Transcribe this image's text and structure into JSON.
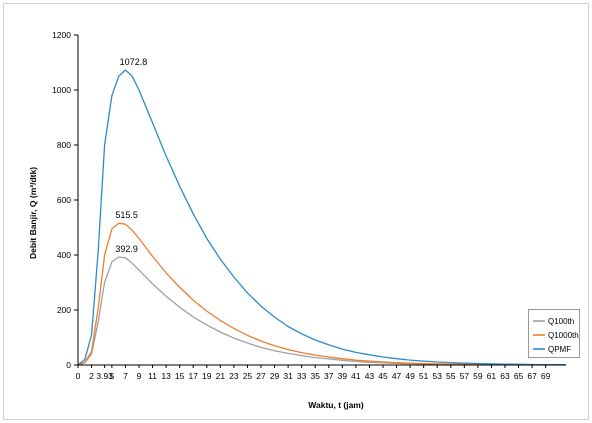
{
  "chart_data": {
    "type": "line",
    "xlabel": "Waktu, t (jam)",
    "ylabel": "Debit Banjir, Q (m³/dtk)",
    "ylim": [
      0,
      1200
    ],
    "y_ticks": [
      0,
      200,
      400,
      600,
      800,
      1000,
      1200
    ],
    "xlim": [
      0,
      72
    ],
    "x_tick_values": [
      0,
      2,
      3.93,
      5,
      7,
      9,
      11,
      13,
      15,
      17,
      19,
      21,
      23,
      25,
      27,
      29,
      31,
      33,
      35,
      37,
      39,
      41,
      43,
      45,
      47,
      49,
      51,
      53,
      55,
      57,
      59,
      61,
      63,
      65,
      67,
      69
    ],
    "x_tick_labels": [
      "0",
      "2",
      "3.93",
      "5",
      "7",
      "9",
      "11",
      "13",
      "15",
      "17",
      "19",
      "21",
      "23",
      "25",
      "27",
      "29",
      "31",
      "33",
      "35",
      "37",
      "39",
      "41",
      "43",
      "45",
      "47",
      "49",
      "51",
      "53",
      "55",
      "57",
      "59",
      "61",
      "63",
      "65",
      "67",
      "69"
    ],
    "grid": false,
    "legend_position": "bottom-right",
    "x": [
      0,
      1,
      2,
      3,
      3.93,
      5,
      6,
      7,
      8,
      9,
      11,
      13,
      15,
      17,
      19,
      21,
      23,
      25,
      27,
      29,
      31,
      33,
      35,
      37,
      39,
      41,
      43,
      45,
      47,
      49,
      51,
      53,
      55,
      57,
      59,
      61,
      63,
      65,
      67,
      69,
      71,
      72
    ],
    "series": [
      {
        "name": "Q100th",
        "color": "#a0a0a0",
        "values": [
          0,
          8,
          40,
          160,
          300,
          375,
          392.9,
          390,
          370,
          345,
          295,
          250,
          210,
          175,
          145,
          120,
          98,
          80,
          64,
          52,
          42,
          34,
          27,
          22,
          17,
          13,
          10,
          8,
          6,
          5,
          4,
          3,
          2.4,
          1.9,
          1.5,
          1.2,
          0.9,
          0.7,
          0.5,
          0.4,
          0.3,
          0.3
        ]
      },
      {
        "name": "Q1000th",
        "color": "#ed7d31",
        "values": [
          0,
          10,
          50,
          210,
          400,
          495,
          515.5,
          512,
          490,
          460,
          395,
          335,
          282,
          236,
          196,
          162,
          133,
          108,
          87,
          70,
          56,
          45,
          36,
          29,
          23,
          18,
          14,
          11,
          8.5,
          6.7,
          5.2,
          4.1,
          3.2,
          2.5,
          2,
          1.5,
          1.2,
          0.9,
          0.7,
          0.5,
          0.4,
          0.4
        ]
      },
      {
        "name": "QPMF",
        "color": "#2e8bc8",
        "values": [
          0,
          20,
          110,
          420,
          800,
          980,
          1050,
          1072.8,
          1050,
          1000,
          880,
          760,
          650,
          550,
          460,
          385,
          320,
          262,
          214,
          174,
          140,
          113,
          91,
          73,
          58,
          46,
          37,
          29,
          23,
          18,
          14,
          11,
          8.7,
          6.8,
          5.3,
          4.1,
          3.2,
          2.5,
          1.9,
          1.5,
          1.2,
          1.0
        ]
      }
    ],
    "annotations": [
      {
        "x": 7,
        "y": 1072.8,
        "text": "1072.8",
        "series": "QPMF"
      },
      {
        "x": 6,
        "y": 515.5,
        "text": "515.5",
        "series": "Q1000th"
      },
      {
        "x": 6,
        "y": 392.9,
        "text": "392.9",
        "series": "Q100th"
      }
    ]
  }
}
